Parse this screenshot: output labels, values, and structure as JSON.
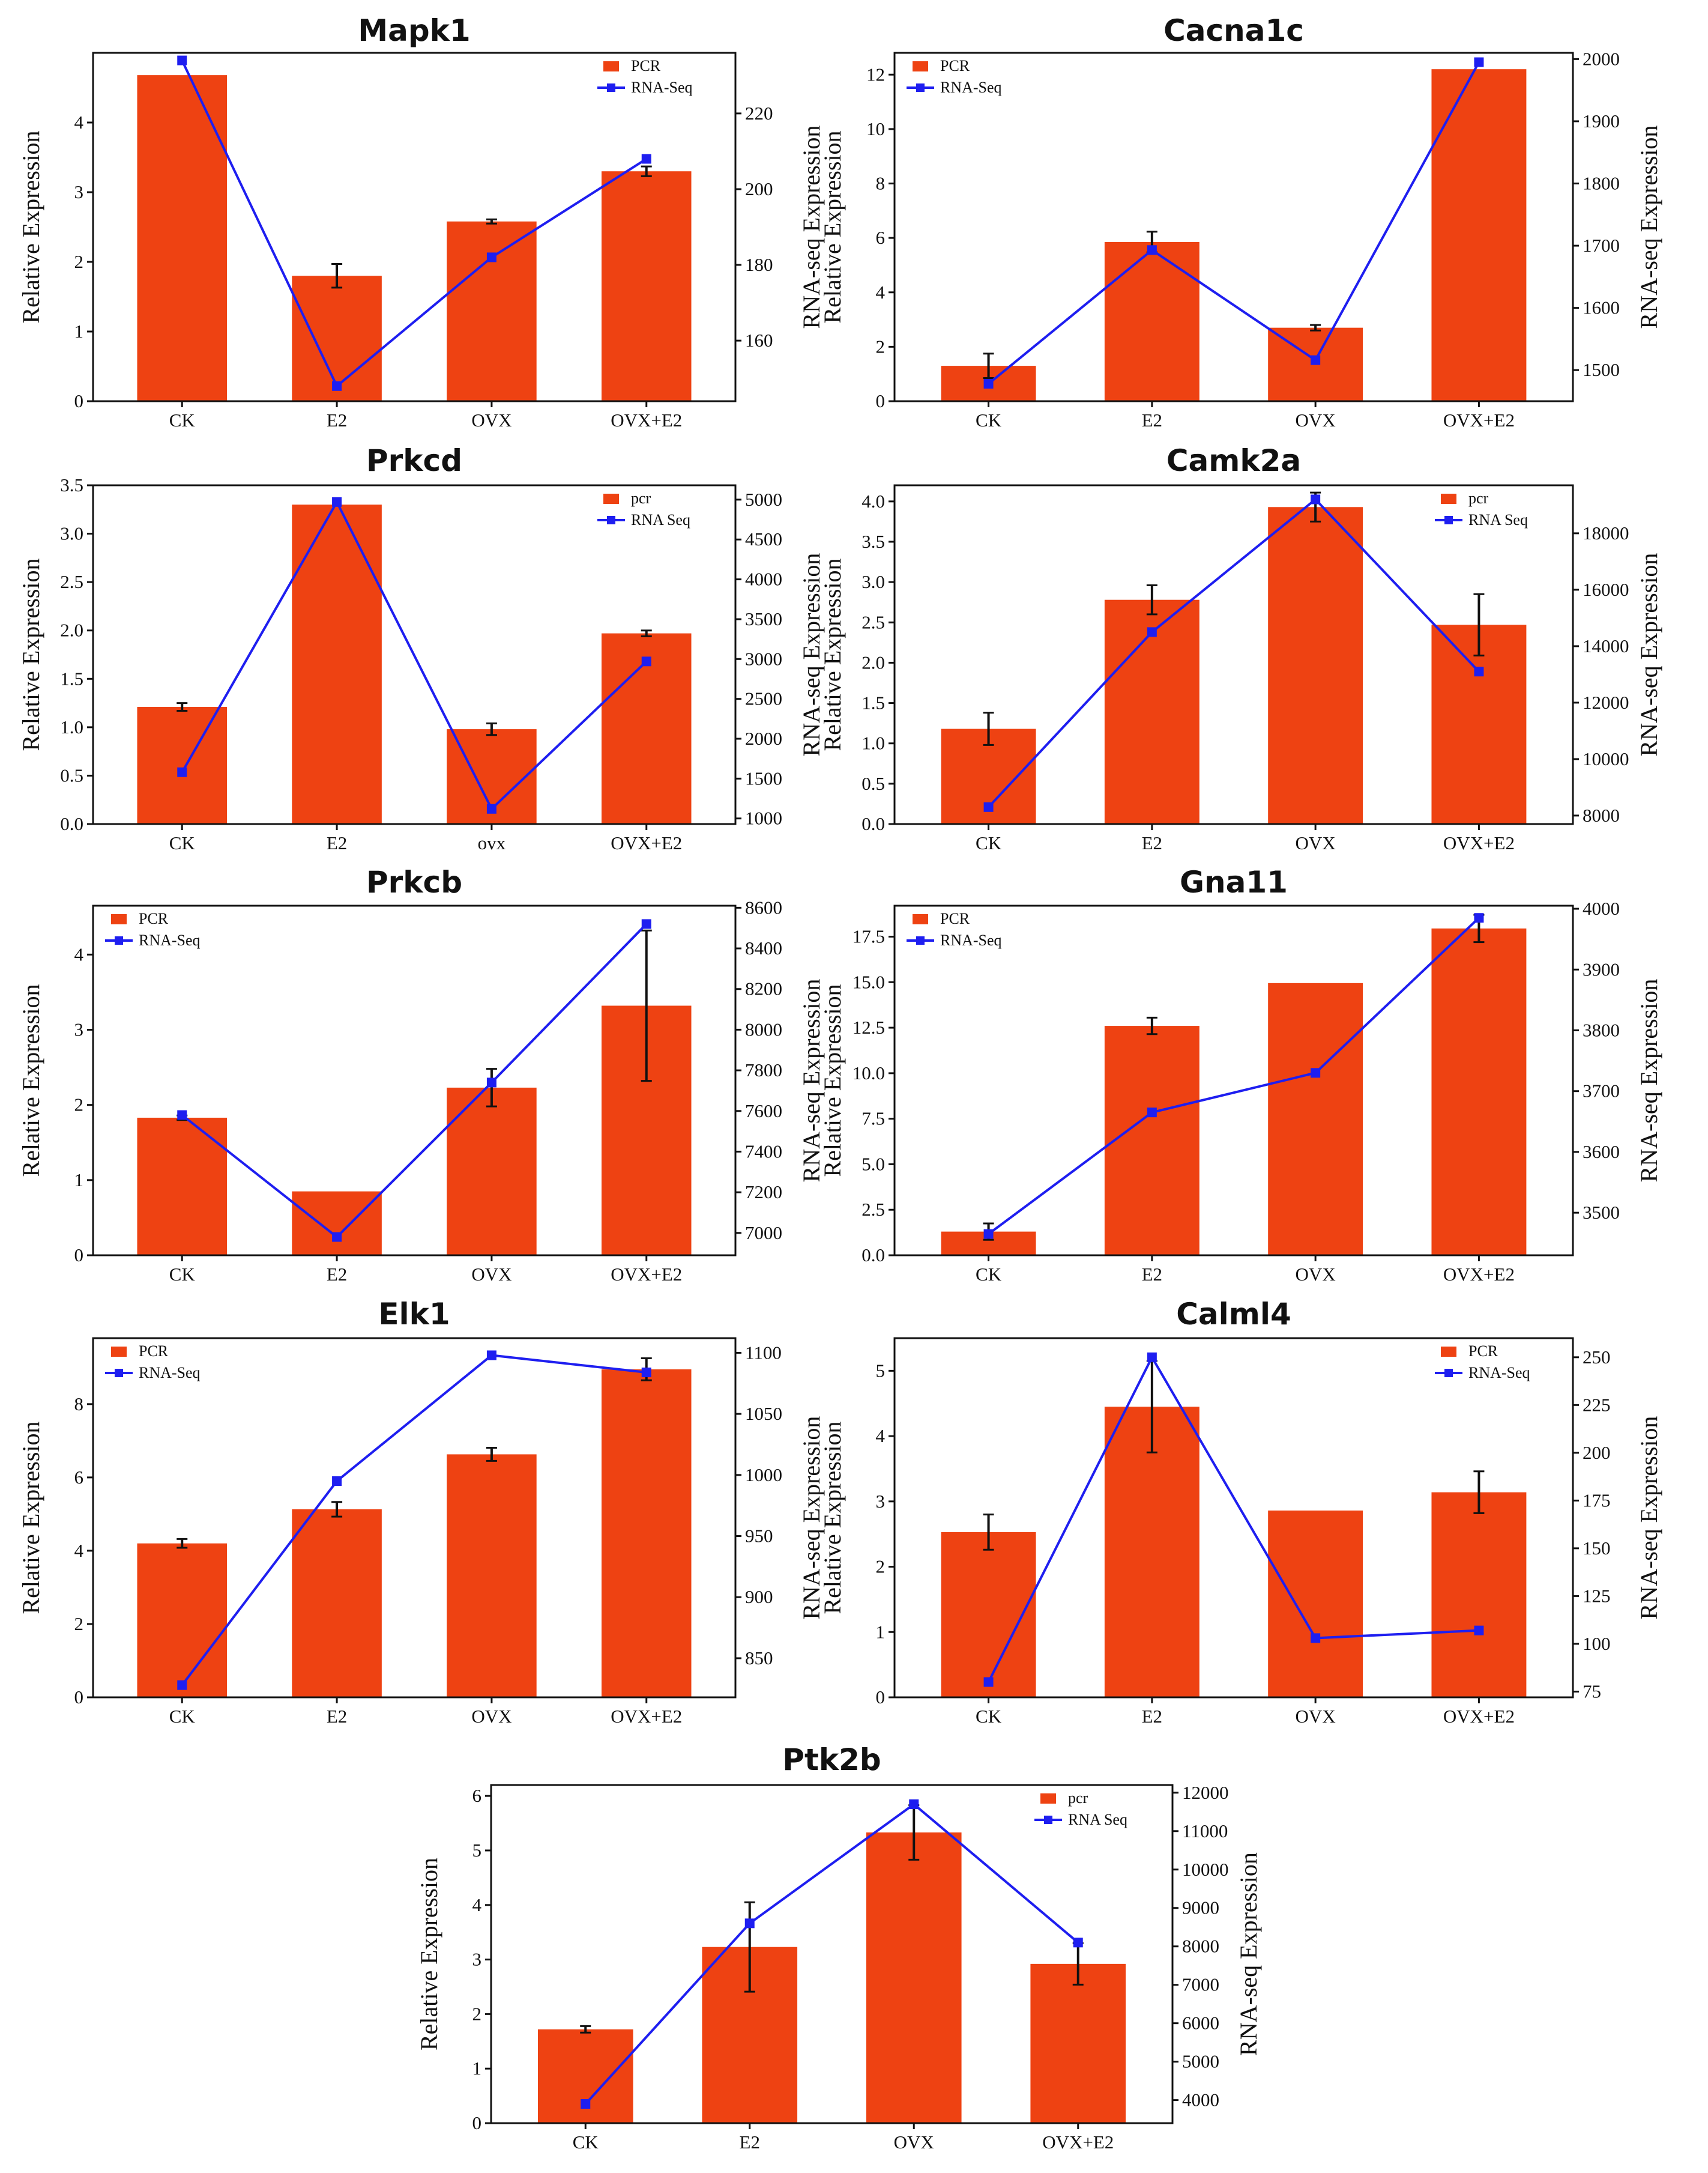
{
  "chart_data": [
    {
      "type": "bar",
      "title": "Mapk1",
      "categories": [
        "CK",
        "E2",
        "OVX",
        "OVX+E2"
      ],
      "ylabel": "Relative Expression",
      "y2label": "RNA-seq Expression",
      "legend_position": "top-right",
      "series": [
        {
          "name": "PCR",
          "type": "bar",
          "axis": "left",
          "color": "#EE4212",
          "values": [
            4.68,
            1.8,
            2.58,
            3.3
          ],
          "errors": [
            0,
            0.17,
            0.03,
            0.07
          ]
        },
        {
          "name": "RNA-Seq",
          "type": "line",
          "axis": "right",
          "color": "#1E1EF0",
          "values": [
            234,
            148,
            182,
            208
          ]
        }
      ],
      "ylim": [
        0,
        5.0
      ],
      "yticks": [
        0,
        1,
        2,
        3,
        4
      ],
      "y2lim": [
        144,
        236
      ],
      "y2ticks": [
        160,
        180,
        200,
        220
      ]
    },
    {
      "type": "bar",
      "title": "Cacna1c",
      "categories": [
        "CK",
        "E2",
        "OVX",
        "OVX+E2"
      ],
      "ylabel": "Relative Expression",
      "y2label": "RNA-seq Expression",
      "legend_position": "top-left",
      "series": [
        {
          "name": "PCR",
          "type": "bar",
          "axis": "left",
          "color": "#EE4212",
          "values": [
            1.3,
            5.85,
            2.7,
            12.2
          ],
          "errors": [
            0.45,
            0.38,
            0.1,
            0
          ]
        },
        {
          "name": "RNA-Seq",
          "type": "line",
          "axis": "right",
          "color": "#1E1EF0",
          "values": [
            1478,
            1693,
            1516,
            1995
          ]
        }
      ],
      "ylim": [
        0,
        12.8
      ],
      "yticks": [
        0,
        2,
        4,
        6,
        8,
        10,
        12
      ],
      "y2lim": [
        1450,
        2010
      ],
      "y2ticks": [
        1500,
        1600,
        1700,
        1800,
        1900,
        2000
      ]
    },
    {
      "type": "bar",
      "title": "Prkcd",
      "categories": [
        "CK",
        "E2",
        "ovx",
        "OVX+E2"
      ],
      "ylabel": "Relative Expression",
      "y2label": "RNA-seq Expression",
      "legend_position": "top-right",
      "series": [
        {
          "name": "pcr",
          "type": "bar",
          "axis": "left",
          "color": "#EE4212",
          "values": [
            1.21,
            3.3,
            0.98,
            1.97
          ],
          "errors": [
            0.04,
            0,
            0.06,
            0.03
          ]
        },
        {
          "name": "RNA Seq",
          "type": "line",
          "axis": "right",
          "color": "#1E1EF0",
          "values": [
            1580,
            4970,
            1120,
            2970
          ]
        }
      ],
      "ylim": [
        0,
        3.5
      ],
      "yticks": [
        0.0,
        0.5,
        1.0,
        1.5,
        2.0,
        2.5,
        3.0,
        3.5
      ],
      "y2lim": [
        930,
        5180
      ],
      "y2ticks": [
        1000,
        1500,
        2000,
        2500,
        3000,
        3500,
        4000,
        4500,
        5000
      ]
    },
    {
      "type": "bar",
      "title": "Camk2a",
      "categories": [
        "CK",
        "E2",
        "OVX",
        "OVX+E2"
      ],
      "ylabel": "Relative Expression",
      "y2label": "RNA-seq Expression",
      "legend_position": "top-right",
      "series": [
        {
          "name": "pcr",
          "type": "bar",
          "axis": "left",
          "color": "#EE4212",
          "values": [
            1.18,
            2.78,
            3.93,
            2.47
          ],
          "errors": [
            0.2,
            0.18,
            0.18,
            0.38
          ]
        },
        {
          "name": "RNA Seq",
          "type": "line",
          "axis": "right",
          "color": "#1E1EF0",
          "values": [
            8300,
            14500,
            19200,
            13100
          ]
        }
      ],
      "ylim": [
        0,
        4.2
      ],
      "yticks": [
        0.0,
        0.5,
        1.0,
        1.5,
        2.0,
        2.5,
        3.0,
        3.5,
        4.0
      ],
      "y2lim": [
        7700,
        19700
      ],
      "y2ticks": [
        8000,
        10000,
        12000,
        14000,
        16000,
        18000
      ]
    },
    {
      "type": "bar",
      "title": "Prkcb",
      "categories": [
        "CK",
        "E2",
        "OVX",
        "OVX+E2"
      ],
      "ylabel": "Relative Expression",
      "y2label": "RNA-seq Expression",
      "legend_position": "top-left",
      "series": [
        {
          "name": "PCR",
          "type": "bar",
          "axis": "left",
          "color": "#EE4212",
          "values": [
            1.83,
            0.85,
            2.23,
            3.32
          ],
          "errors": [
            0.03,
            0,
            0.25,
            1.0
          ]
        },
        {
          "name": "RNA-Seq",
          "type": "line",
          "axis": "right",
          "color": "#1E1EF0",
          "values": [
            7580,
            6980,
            7740,
            8520
          ]
        }
      ],
      "ylim": [
        0,
        4.65
      ],
      "yticks": [
        0,
        1,
        2,
        3,
        4
      ],
      "y2lim": [
        6890,
        8610
      ],
      "y2ticks": [
        7000,
        7200,
        7400,
        7600,
        7800,
        8000,
        8200,
        8400,
        8600
      ]
    },
    {
      "type": "bar",
      "title": "Gna11",
      "categories": [
        "CK",
        "E2",
        "OVX",
        "OVX+E2"
      ],
      "ylabel": "Relative Expression",
      "y2label": "RNA-seq Expression",
      "legend_position": "top-left",
      "series": [
        {
          "name": "PCR",
          "type": "bar",
          "axis": "left",
          "color": "#EE4212",
          "values": [
            1.3,
            12.6,
            14.95,
            17.95
          ],
          "errors": [
            0.45,
            0.45,
            0,
            0.75
          ]
        },
        {
          "name": "RNA-Seq",
          "type": "line",
          "axis": "right",
          "color": "#1E1EF0",
          "values": [
            3465,
            3665,
            3730,
            3985
          ]
        }
      ],
      "ylim": [
        0,
        19.2
      ],
      "yticks": [
        0.0,
        2.5,
        5.0,
        7.5,
        10.0,
        12.5,
        15.0,
        17.5
      ],
      "y2lim": [
        3430,
        4005
      ],
      "y2ticks": [
        3500,
        3600,
        3700,
        3800,
        3900,
        4000
      ]
    },
    {
      "type": "bar",
      "title": "Elk1",
      "categories": [
        "CK",
        "E2",
        "OVX",
        "OVX+E2"
      ],
      "ylabel": "Relative Expression",
      "y2label": "RNA-seq Expression",
      "legend_position": "top-left",
      "series": [
        {
          "name": "PCR",
          "type": "bar",
          "axis": "left",
          "color": "#EE4212",
          "values": [
            4.2,
            5.13,
            6.63,
            8.95
          ],
          "errors": [
            0.12,
            0.2,
            0.18,
            0.3
          ]
        },
        {
          "name": "RNA-Seq",
          "type": "line",
          "axis": "right",
          "color": "#1E1EF0",
          "values": [
            828,
            995,
            1098,
            1084
          ]
        }
      ],
      "ylim": [
        0,
        9.8
      ],
      "yticks": [
        0,
        2,
        4,
        6,
        8
      ],
      "y2lim": [
        818,
        1112
      ],
      "y2ticks": [
        850,
        900,
        950,
        1000,
        1050,
        1100
      ]
    },
    {
      "type": "bar",
      "title": "Calml4",
      "categories": [
        "CK",
        "E2",
        "OVX",
        "OVX+E2"
      ],
      "ylabel": "Relative Expression",
      "y2label": "RNA-seq Expression",
      "legend_position": "top-right",
      "series": [
        {
          "name": "PCR",
          "type": "bar",
          "axis": "left",
          "color": "#EE4212",
          "values": [
            2.53,
            4.45,
            2.86,
            3.14
          ],
          "errors": [
            0.27,
            0.7,
            0,
            0.32
          ]
        },
        {
          "name": "RNA-Seq",
          "type": "line",
          "axis": "right",
          "color": "#1E1EF0",
          "values": [
            80,
            250,
            103,
            107
          ]
        }
      ],
      "ylim": [
        0,
        5.5
      ],
      "yticks": [
        0,
        1,
        2,
        3,
        4,
        5
      ],
      "y2lim": [
        72,
        260
      ],
      "y2ticks": [
        75,
        100,
        125,
        150,
        175,
        200,
        225,
        250
      ]
    },
    {
      "type": "bar",
      "title": "Ptk2b",
      "categories": [
        "CK",
        "E2",
        "OVX",
        "OVX+E2"
      ],
      "ylabel": "Relative Expression",
      "y2label": "RNA-seq Expression",
      "legend_position": "top-right",
      "series": [
        {
          "name": "pcr",
          "type": "bar",
          "axis": "left",
          "color": "#EE4212",
          "values": [
            1.72,
            3.23,
            5.33,
            2.92
          ],
          "errors": [
            0.06,
            0.82,
            0.5,
            0.38
          ]
        },
        {
          "name": "RNA Seq",
          "type": "line",
          "axis": "right",
          "color": "#1E1EF0",
          "values": [
            3900,
            8600,
            11700,
            8100
          ]
        }
      ],
      "ylim": [
        0,
        6.2
      ],
      "yticks": [
        0,
        1,
        2,
        3,
        4,
        5,
        6
      ],
      "y2lim": [
        3400,
        12200
      ],
      "y2ticks": [
        4000,
        5000,
        6000,
        7000,
        8000,
        9000,
        10000,
        11000,
        12000
      ]
    }
  ]
}
